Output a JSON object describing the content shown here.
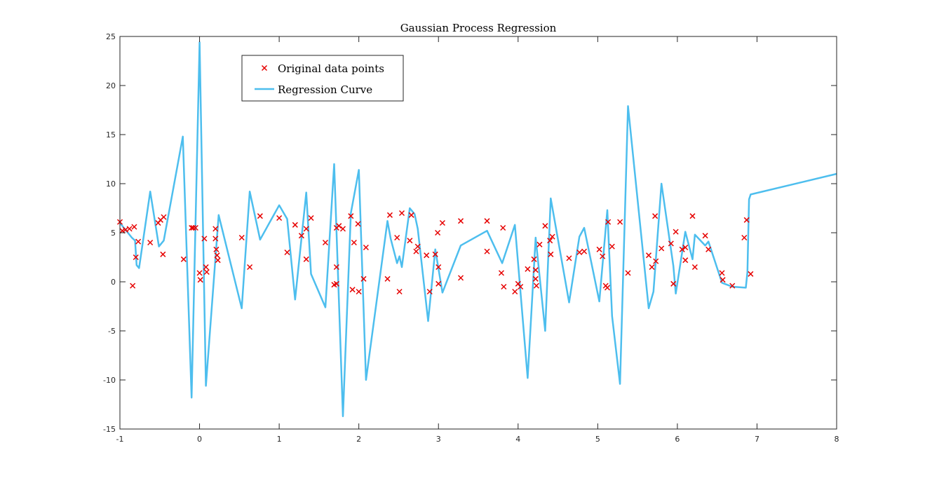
{
  "chart_data": {
    "type": "scatter",
    "title": "Gaussian Process Regression",
    "xlabel": "",
    "ylabel": "",
    "xlim": [
      -1,
      8
    ],
    "ylim": [
      -15,
      25
    ],
    "x_ticks": [
      "-1",
      "0",
      "1",
      "2",
      "3",
      "4",
      "5",
      "6",
      "7",
      "8"
    ],
    "y_ticks": [
      "-15",
      "-10",
      "-5",
      "0",
      "5",
      "10",
      "15",
      "20",
      "25"
    ],
    "grid": false,
    "legend_position": "top-left",
    "series": [
      {
        "name": "Original data points",
        "kind": "scatter",
        "marker": "x",
        "color": "#e60000",
        "points": [
          [
            -1.0,
            6.1
          ],
          [
            -0.97,
            5.2
          ],
          [
            -0.93,
            5.3
          ],
          [
            -0.88,
            5.4
          ],
          [
            -0.84,
            -0.4
          ],
          [
            -0.82,
            5.6
          ],
          [
            -0.8,
            2.5
          ],
          [
            -0.77,
            4.1
          ],
          [
            -0.62,
            4.0
          ],
          [
            -0.52,
            6.0
          ],
          [
            -0.49,
            6.3
          ],
          [
            -0.46,
            2.8
          ],
          [
            -0.45,
            6.6
          ],
          [
            -0.2,
            2.3
          ],
          [
            -0.1,
            5.5
          ],
          [
            -0.08,
            5.5
          ],
          [
            -0.05,
            5.5
          ],
          [
            0.0,
            0.9
          ],
          [
            0.01,
            0.2
          ],
          [
            0.06,
            4.4
          ],
          [
            0.08,
            1.5
          ],
          [
            0.09,
            1.0
          ],
          [
            0.2,
            5.4
          ],
          [
            0.2,
            4.4
          ],
          [
            0.21,
            3.3
          ],
          [
            0.22,
            2.7
          ],
          [
            0.23,
            2.2
          ],
          [
            0.53,
            4.5
          ],
          [
            0.63,
            1.5
          ],
          [
            0.76,
            6.7
          ],
          [
            1.0,
            6.5
          ],
          [
            1.1,
            3.0
          ],
          [
            1.2,
            5.8
          ],
          [
            1.28,
            4.7
          ],
          [
            1.34,
            2.3
          ],
          [
            1.34,
            5.4
          ],
          [
            1.4,
            6.5
          ],
          [
            1.58,
            4.0
          ],
          [
            1.69,
            -0.3
          ],
          [
            1.72,
            -0.2
          ],
          [
            1.72,
            1.5
          ],
          [
            1.72,
            5.5
          ],
          [
            1.75,
            5.7
          ],
          [
            1.8,
            5.4
          ],
          [
            1.9,
            6.7
          ],
          [
            1.92,
            -0.8
          ],
          [
            1.94,
            4.0
          ],
          [
            1.99,
            5.9
          ],
          [
            2.0,
            -1.0
          ],
          [
            2.06,
            0.3
          ],
          [
            2.09,
            3.5
          ],
          [
            2.36,
            0.3
          ],
          [
            2.39,
            6.8
          ],
          [
            2.48,
            4.5
          ],
          [
            2.51,
            -1.0
          ],
          [
            2.54,
            7.0
          ],
          [
            2.64,
            4.2
          ],
          [
            2.66,
            6.8
          ],
          [
            2.72,
            3.1
          ],
          [
            2.74,
            3.6
          ],
          [
            2.85,
            2.7
          ],
          [
            2.89,
            -1.0
          ],
          [
            2.96,
            2.8
          ],
          [
            2.99,
            5.0
          ],
          [
            3.0,
            -0.2
          ],
          [
            3.0,
            1.5
          ],
          [
            3.05,
            6.0
          ],
          [
            3.28,
            6.2
          ],
          [
            3.28,
            0.4
          ],
          [
            3.61,
            6.2
          ],
          [
            3.61,
            3.1
          ],
          [
            3.79,
            0.9
          ],
          [
            3.81,
            5.5
          ],
          [
            3.82,
            -0.5
          ],
          [
            3.96,
            -1.0
          ],
          [
            4.0,
            -0.2
          ],
          [
            4.03,
            -0.5
          ],
          [
            4.12,
            1.3
          ],
          [
            4.2,
            2.3
          ],
          [
            4.22,
            1.2
          ],
          [
            4.22,
            0.3
          ],
          [
            4.23,
            -0.4
          ],
          [
            4.27,
            3.8
          ],
          [
            4.34,
            5.7
          ],
          [
            4.4,
            4.2
          ],
          [
            4.41,
            2.8
          ],
          [
            4.43,
            4.6
          ],
          [
            4.64,
            2.4
          ],
          [
            4.77,
            3.0
          ],
          [
            4.83,
            3.1
          ],
          [
            5.02,
            3.3
          ],
          [
            5.06,
            2.6
          ],
          [
            5.1,
            -0.4
          ],
          [
            5.12,
            -0.6
          ],
          [
            5.13,
            6.1
          ],
          [
            5.18,
            3.6
          ],
          [
            5.28,
            6.1
          ],
          [
            5.38,
            0.9
          ],
          [
            5.64,
            2.7
          ],
          [
            5.68,
            1.5
          ],
          [
            5.72,
            6.7
          ],
          [
            5.73,
            2.1
          ],
          [
            5.8,
            3.4
          ],
          [
            5.92,
            3.9
          ],
          [
            5.95,
            -0.2
          ],
          [
            5.98,
            5.1
          ],
          [
            6.06,
            3.3
          ],
          [
            6.1,
            2.2
          ],
          [
            6.1,
            3.5
          ],
          [
            6.19,
            6.7
          ],
          [
            6.22,
            1.5
          ],
          [
            6.35,
            4.7
          ],
          [
            6.39,
            3.3
          ],
          [
            6.56,
            0.9
          ],
          [
            6.57,
            0.2
          ],
          [
            6.69,
            -0.4
          ],
          [
            6.84,
            4.5
          ],
          [
            6.87,
            6.3
          ],
          [
            6.92,
            0.8
          ]
        ]
      },
      {
        "name": "Regression Curve",
        "kind": "line",
        "color": "#4dbeee",
        "points": [
          [
            -1.0,
            6.0
          ],
          [
            -0.85,
            4.5
          ],
          [
            -0.81,
            4.2
          ],
          [
            -0.79,
            1.7
          ],
          [
            -0.76,
            1.4
          ],
          [
            -0.62,
            9.2
          ],
          [
            -0.51,
            3.6
          ],
          [
            -0.45,
            4.2
          ],
          [
            -0.21,
            14.8
          ],
          [
            -0.1,
            -11.8
          ],
          [
            0.0,
            24.4
          ],
          [
            0.08,
            -10.6
          ],
          [
            0.24,
            6.8
          ],
          [
            0.53,
            -2.7
          ],
          [
            0.63,
            9.2
          ],
          [
            0.76,
            4.3
          ],
          [
            1.0,
            7.8
          ],
          [
            1.1,
            6.4
          ],
          [
            1.2,
            -1.8
          ],
          [
            1.34,
            9.1
          ],
          [
            1.4,
            0.8
          ],
          [
            1.58,
            -2.6
          ],
          [
            1.69,
            12.0
          ],
          [
            1.8,
            -13.7
          ],
          [
            1.9,
            7.0
          ],
          [
            2.0,
            11.4
          ],
          [
            2.09,
            -10.0
          ],
          [
            2.36,
            6.2
          ],
          [
            2.4,
            4.4
          ],
          [
            2.48,
            1.9
          ],
          [
            2.51,
            2.6
          ],
          [
            2.54,
            1.5
          ],
          [
            2.64,
            7.5
          ],
          [
            2.7,
            6.9
          ],
          [
            2.74,
            5.4
          ],
          [
            2.87,
            -4.0
          ],
          [
            2.96,
            3.3
          ],
          [
            3.05,
            -1.1
          ],
          [
            3.28,
            3.7
          ],
          [
            3.61,
            5.2
          ],
          [
            3.8,
            1.9
          ],
          [
            3.96,
            5.8
          ],
          [
            4.12,
            -9.8
          ],
          [
            4.22,
            4.5
          ],
          [
            4.34,
            -5.0
          ],
          [
            4.41,
            8.5
          ],
          [
            4.64,
            -2.1
          ],
          [
            4.77,
            4.6
          ],
          [
            4.83,
            5.5
          ],
          [
            5.02,
            -2.0
          ],
          [
            5.12,
            7.3
          ],
          [
            5.18,
            -3.5
          ],
          [
            5.28,
            -10.4
          ],
          [
            5.38,
            17.9
          ],
          [
            5.64,
            -2.7
          ],
          [
            5.7,
            -1.0
          ],
          [
            5.8,
            10.0
          ],
          [
            5.95,
            1.6
          ],
          [
            5.98,
            -1.2
          ],
          [
            6.1,
            5.1
          ],
          [
            6.19,
            2.3
          ],
          [
            6.22,
            4.8
          ],
          [
            6.35,
            3.7
          ],
          [
            6.39,
            4.1
          ],
          [
            6.56,
            -0.1
          ],
          [
            6.69,
            -0.5
          ],
          [
            6.86,
            -0.6
          ],
          [
            6.88,
            1.0
          ],
          [
            6.9,
            8.4
          ],
          [
            6.92,
            8.9
          ],
          [
            8.0,
            11.0
          ]
        ]
      }
    ]
  },
  "legend": {
    "items": [
      {
        "label": "Original data points",
        "color": "#e60000",
        "marker": "x"
      },
      {
        "label": "Regression Curve",
        "color": "#4dbeee",
        "marker": "line"
      }
    ]
  }
}
